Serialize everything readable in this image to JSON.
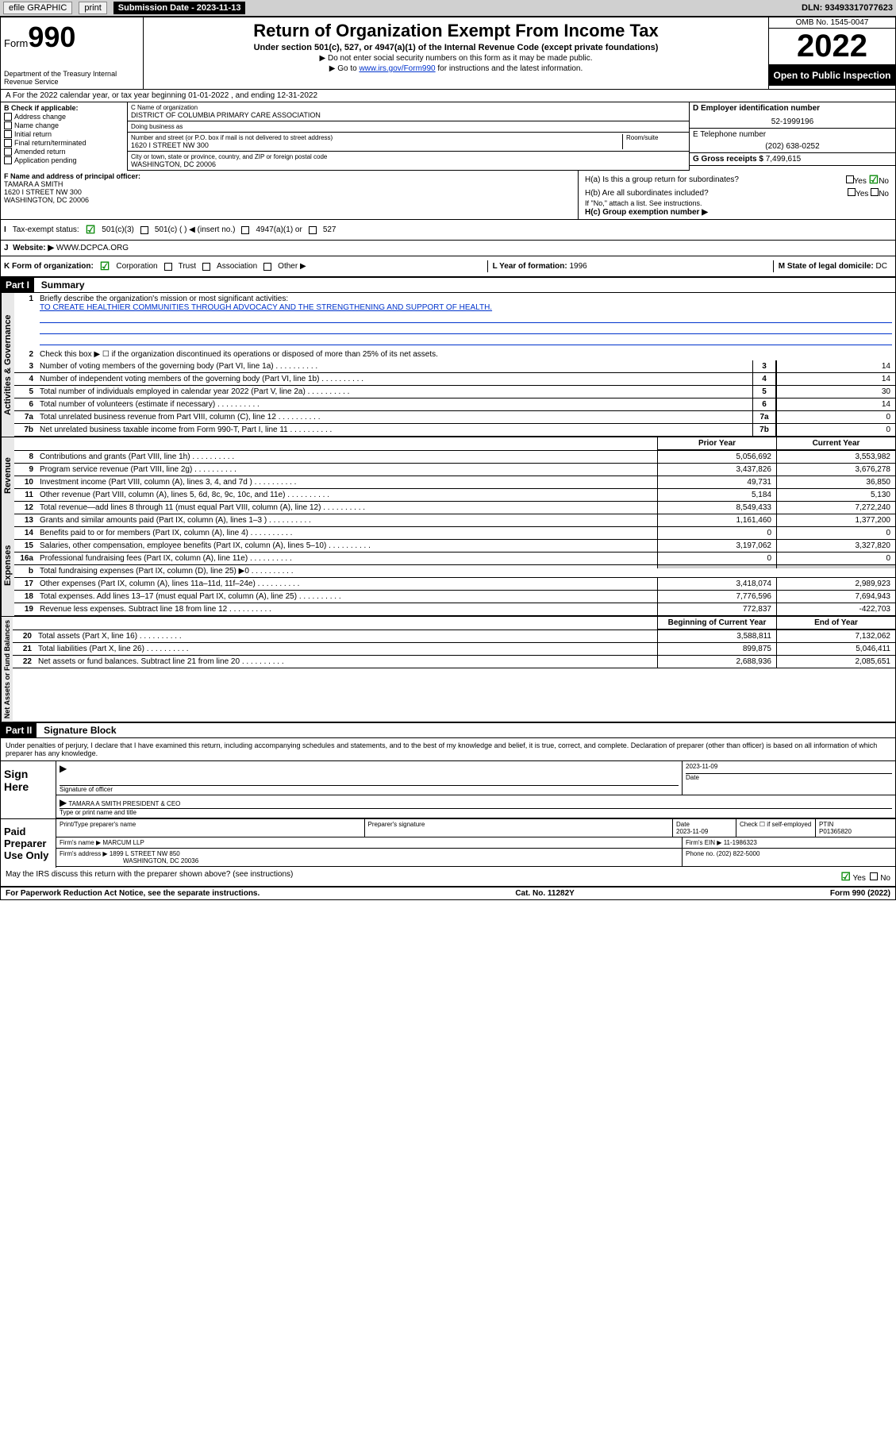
{
  "topbar": {
    "efile": "efile GRAPHIC",
    "print": "print",
    "sub_date_label": "Submission Date - 2023-11-13",
    "dln": "DLN: 93493317077623"
  },
  "header": {
    "form_label": "Form",
    "form_num": "990",
    "dept": "Department of the Treasury Internal Revenue Service",
    "title": "Return of Organization Exempt From Income Tax",
    "subtitle": "Under section 501(c), 527, or 4947(a)(1) of the Internal Revenue Code (except private foundations)",
    "note1": "▶ Do not enter social security numbers on this form as it may be made public.",
    "note2": "▶ Go to www.irs.gov/Form990 for instructions and the latest information.",
    "link": "www.irs.gov/Form990",
    "omb": "OMB No. 1545-0047",
    "year": "2022",
    "open": "Open to Public Inspection"
  },
  "a_line": "A For the 2022 calendar year, or tax year beginning 01-01-2022   , and ending 12-31-2022",
  "b": {
    "label": "B Check if applicable:",
    "opts": [
      "Address change",
      "Name change",
      "Initial return",
      "Final return/terminated",
      "Amended return",
      "Application pending"
    ]
  },
  "c": {
    "name_label": "C Name of organization",
    "name": "DISTRICT OF COLUMBIA PRIMARY CARE ASSOCIATION",
    "dba_label": "Doing business as",
    "addr_label": "Number and street (or P.O. box if mail is not delivered to street address)",
    "room_label": "Room/suite",
    "addr": "1620 I STREET NW 300",
    "city_label": "City or town, state or province, country, and ZIP or foreign postal code",
    "city": "WASHINGTON, DC  20006"
  },
  "d": {
    "label": "D Employer identification number",
    "val": "52-1999196"
  },
  "e": {
    "label": "E Telephone number",
    "val": "(202) 638-0252"
  },
  "g": {
    "label": "G Gross receipts $",
    "val": "7,499,615"
  },
  "f": {
    "label": "F Name and address of principal officer:",
    "name": "TAMARA A SMITH",
    "addr1": "1620 I STREET NW 300",
    "addr2": "WASHINGTON, DC  20006"
  },
  "h": {
    "a_label": "H(a)  Is this a group return for subordinates?",
    "b_label": "H(b)  Are all subordinates included?",
    "note": "If \"No,\" attach a list. See instructions.",
    "c_label": "H(c)  Group exemption number ▶",
    "yes": "Yes",
    "no": "No"
  },
  "i": {
    "label": "Tax-exempt status:",
    "opt1": "501(c)(3)",
    "opt2": "501(c) (  ) ◀ (insert no.)",
    "opt3": "4947(a)(1) or",
    "opt4": "527"
  },
  "j": {
    "label": "Website: ▶",
    "val": "WWW.DCPCA.ORG"
  },
  "k": {
    "label": "K Form of organization:",
    "opts": [
      "Corporation",
      "Trust",
      "Association",
      "Other ▶"
    ],
    "l_label": "L Year of formation:",
    "l_val": "1996",
    "m_label": "M State of legal domicile:",
    "m_val": "DC"
  },
  "part1": {
    "header": "Part I",
    "title": "Summary",
    "line1_label": "Briefly describe the organization's mission or most significant activities:",
    "line1_text": "TO CREATE HEALTHIER COMMUNITIES THROUGH ADVOCACY AND THE STRENGTHENING AND SUPPORT OF HEALTH.",
    "line2": "Check this box ▶ ☐  if the organization discontinued its operations or disposed of more than 25% of its net assets.",
    "gov": [
      {
        "n": "3",
        "t": "Number of voting members of the governing body (Part VI, line 1a)",
        "v": "14"
      },
      {
        "n": "4",
        "t": "Number of independent voting members of the governing body (Part VI, line 1b)",
        "v": "14"
      },
      {
        "n": "5",
        "t": "Total number of individuals employed in calendar year 2022 (Part V, line 2a)",
        "v": "30"
      },
      {
        "n": "6",
        "t": "Total number of volunteers (estimate if necessary)",
        "v": "14"
      },
      {
        "n": "7a",
        "t": "Total unrelated business revenue from Part VIII, column (C), line 12",
        "v": "0"
      },
      {
        "n": "7b",
        "t": "Net unrelated business taxable income from Form 990-T, Part I, line 11",
        "v": "0"
      }
    ],
    "prior_label": "Prior Year",
    "curr_label": "Current Year",
    "rev": [
      {
        "n": "8",
        "t": "Contributions and grants (Part VIII, line 1h)",
        "p": "5,056,692",
        "c": "3,553,982"
      },
      {
        "n": "9",
        "t": "Program service revenue (Part VIII, line 2g)",
        "p": "3,437,826",
        "c": "3,676,278"
      },
      {
        "n": "10",
        "t": "Investment income (Part VIII, column (A), lines 3, 4, and 7d )",
        "p": "49,731",
        "c": "36,850"
      },
      {
        "n": "11",
        "t": "Other revenue (Part VIII, column (A), lines 5, 6d, 8c, 9c, 10c, and 11e)",
        "p": "5,184",
        "c": "5,130"
      },
      {
        "n": "12",
        "t": "Total revenue—add lines 8 through 11 (must equal Part VIII, column (A), line 12)",
        "p": "8,549,433",
        "c": "7,272,240"
      }
    ],
    "exp": [
      {
        "n": "13",
        "t": "Grants and similar amounts paid (Part IX, column (A), lines 1–3 )",
        "p": "1,161,460",
        "c": "1,377,200"
      },
      {
        "n": "14",
        "t": "Benefits paid to or for members (Part IX, column (A), line 4)",
        "p": "0",
        "c": "0"
      },
      {
        "n": "15",
        "t": "Salaries, other compensation, employee benefits (Part IX, column (A), lines 5–10)",
        "p": "3,197,062",
        "c": "3,327,820"
      },
      {
        "n": "16a",
        "t": "Professional fundraising fees (Part IX, column (A), line 11e)",
        "p": "0",
        "c": "0"
      },
      {
        "n": "b",
        "t": "Total fundraising expenses (Part IX, column (D), line 25) ▶0",
        "p": "",
        "c": "",
        "grey": true
      },
      {
        "n": "17",
        "t": "Other expenses (Part IX, column (A), lines 11a–11d, 11f–24e)",
        "p": "3,418,074",
        "c": "2,989,923"
      },
      {
        "n": "18",
        "t": "Total expenses. Add lines 13–17 (must equal Part IX, column (A), line 25)",
        "p": "7,776,596",
        "c": "7,694,943"
      },
      {
        "n": "19",
        "t": "Revenue less expenses. Subtract line 18 from line 12",
        "p": "772,837",
        "c": "-422,703"
      }
    ],
    "begin_label": "Beginning of Current Year",
    "end_label": "End of Year",
    "net": [
      {
        "n": "20",
        "t": "Total assets (Part X, line 16)",
        "p": "3,588,811",
        "c": "7,132,062"
      },
      {
        "n": "21",
        "t": "Total liabilities (Part X, line 26)",
        "p": "899,875",
        "c": "5,046,411"
      },
      {
        "n": "22",
        "t": "Net assets or fund balances. Subtract line 21 from line 20",
        "p": "2,688,936",
        "c": "2,085,651"
      }
    ],
    "vert_gov": "Activities & Governance",
    "vert_rev": "Revenue",
    "vert_exp": "Expenses",
    "vert_net": "Net Assets or Fund Balances"
  },
  "part2": {
    "header": "Part II",
    "title": "Signature Block",
    "declare": "Under penalties of perjury, I declare that I have examined this return, including accompanying schedules and statements, and to the best of my knowledge and belief, it is true, correct, and complete. Declaration of preparer (other than officer) is based on all information of which preparer has any knowledge.",
    "sign_here": "Sign Here",
    "sig_officer": "Signature of officer",
    "sig_date": "Date",
    "sig_date_val": "2023-11-09",
    "officer_name": "TAMARA A SMITH  PRESIDENT & CEO",
    "officer_label": "Type or print name and title",
    "paid": "Paid Preparer Use Only",
    "prep_name_label": "Print/Type preparer's name",
    "prep_sig_label": "Preparer's signature",
    "prep_date_label": "Date",
    "prep_date": "2023-11-09",
    "check_if": "Check ☐ if self-employed",
    "ptin_label": "PTIN",
    "ptin": "P01365820",
    "firm_name_label": "Firm's name    ▶",
    "firm_name": "MARCUM LLP",
    "firm_ein_label": "Firm's EIN ▶",
    "firm_ein": "11-1986323",
    "firm_addr_label": "Firm's address ▶",
    "firm_addr1": "1899 L STREET NW 850",
    "firm_addr2": "WASHINGTON, DC  20036",
    "phone_label": "Phone no.",
    "phone": "(202) 822-5000",
    "discuss": "May the IRS discuss this return with the preparer shown above? (see instructions)",
    "yes": "Yes",
    "no": "No"
  },
  "footer": {
    "pra": "For Paperwork Reduction Act Notice, see the separate instructions.",
    "cat": "Cat. No. 11282Y",
    "form": "Form 990 (2022)"
  }
}
